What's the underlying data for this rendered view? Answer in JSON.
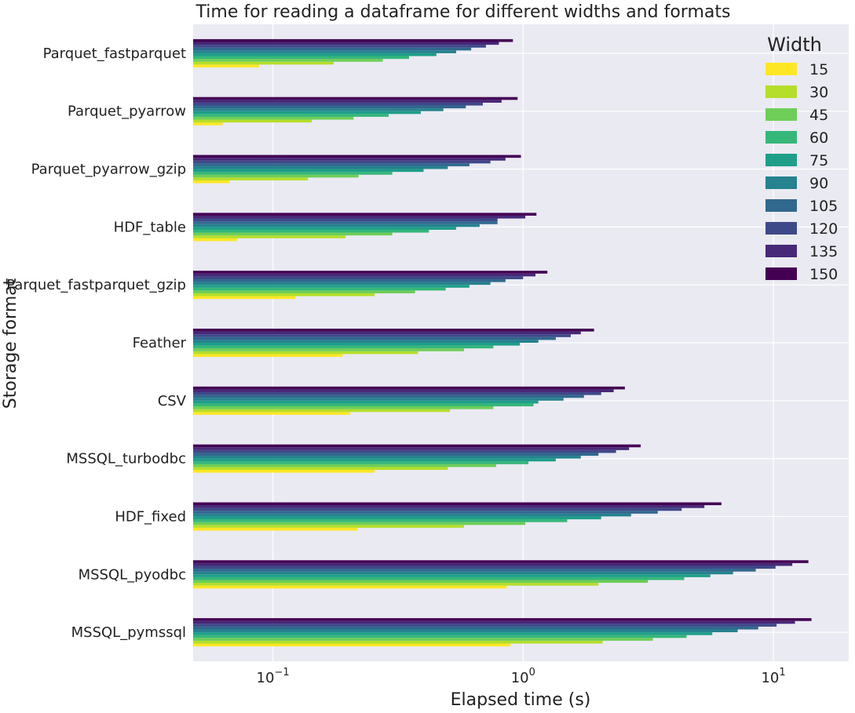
{
  "chart_data": {
    "type": "bar",
    "orientation": "horizontal",
    "title": "Time for reading a dataframe for different widths and formats",
    "xlabel": "Elapsed time (s)",
    "ylabel": "Storage format",
    "xscale": "log",
    "xlim": [
      0.048,
      20
    ],
    "x_ticks": [
      {
        "value": 0.1,
        "base": "10",
        "exp": "−1"
      },
      {
        "value": 1,
        "base": "10",
        "exp": "0"
      },
      {
        "value": 10,
        "base": "10",
        "exp": "1"
      }
    ],
    "grid": true,
    "legend": {
      "title": "Width",
      "position": "top-right"
    },
    "categories": [
      "Parquet_fastparquet",
      "Parquet_pyarrow",
      "Parquet_pyarrow_gzip",
      "HDF_table",
      "Parquet_fastparquet_gzip",
      "Feather",
      "CSV",
      "MSSQL_turbodbc",
      "HDF_fixed",
      "MSSQL_pyodbc",
      "MSSQL_pymssql"
    ],
    "series": [
      {
        "name": "15",
        "color": "#fde725",
        "values": [
          0.088,
          0.063,
          0.067,
          0.072,
          0.123,
          0.19,
          0.204,
          0.255,
          0.218,
          0.86,
          0.89
        ]
      },
      {
        "name": "30",
        "color": "#b5de2b",
        "values": [
          0.175,
          0.143,
          0.138,
          0.195,
          0.255,
          0.38,
          0.51,
          0.5,
          0.58,
          2.0,
          2.08
        ]
      },
      {
        "name": "45",
        "color": "#6ece58",
        "values": [
          0.275,
          0.21,
          0.22,
          0.3,
          0.37,
          0.58,
          0.76,
          0.78,
          1.02,
          3.15,
          3.3
        ]
      },
      {
        "name": "60",
        "color": "#35b779",
        "values": [
          0.35,
          0.29,
          0.3,
          0.42,
          0.49,
          0.76,
          1.1,
          1.05,
          1.5,
          4.4,
          4.5
        ]
      },
      {
        "name": "75",
        "color": "#1f9e89",
        "values": [
          0.45,
          0.39,
          0.4,
          0.54,
          0.61,
          0.97,
          1.15,
          1.35,
          2.05,
          5.6,
          5.7
        ]
      },
      {
        "name": "90",
        "color": "#26828e",
        "values": [
          0.54,
          0.48,
          0.5,
          0.67,
          0.74,
          1.15,
          1.45,
          1.7,
          2.7,
          6.9,
          7.2
        ]
      },
      {
        "name": "105",
        "color": "#31688e",
        "values": [
          0.62,
          0.59,
          0.61,
          0.79,
          0.85,
          1.35,
          1.75,
          2.0,
          3.45,
          8.5,
          8.7
        ]
      },
      {
        "name": "120",
        "color": "#3e4989",
        "values": [
          0.71,
          0.69,
          0.74,
          0.79,
          1.0,
          1.55,
          2.05,
          2.35,
          4.3,
          10.2,
          10.3
        ]
      },
      {
        "name": "135",
        "color": "#482878",
        "values": [
          0.8,
          0.82,
          0.85,
          1.02,
          1.12,
          1.7,
          2.3,
          2.65,
          5.3,
          11.9,
          12.2
        ]
      },
      {
        "name": "150",
        "color": "#440154",
        "values": [
          0.91,
          0.95,
          0.98,
          1.13,
          1.25,
          1.92,
          2.55,
          2.95,
          6.2,
          13.8,
          14.2
        ]
      }
    ]
  }
}
